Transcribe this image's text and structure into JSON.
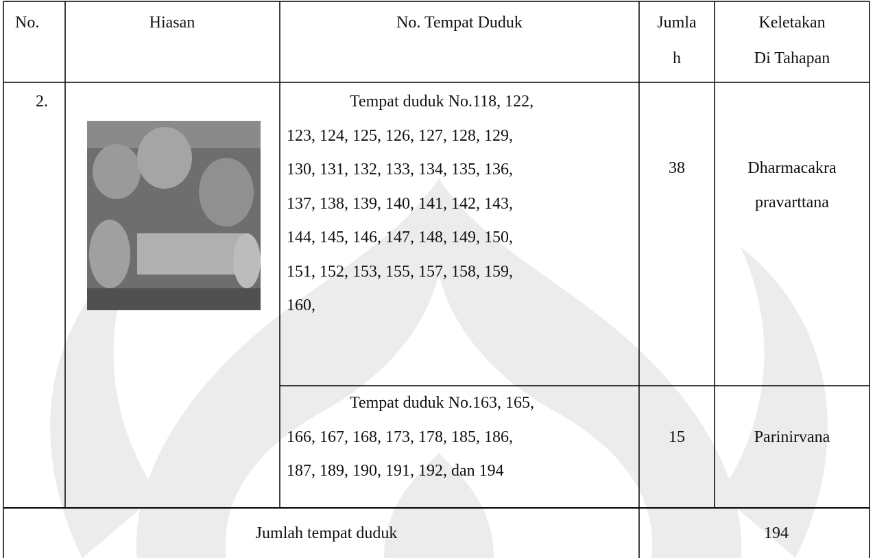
{
  "table": {
    "header": {
      "no": "No.",
      "hiasan": "Hiasan",
      "tempat": "No. Tempat Duduk",
      "jumlah": [
        "Jumla",
        "h"
      ],
      "keletakan": [
        "Keletakan",
        "Di Tahapan"
      ]
    },
    "rows": [
      {
        "no": "2.",
        "entries": [
          {
            "seats": [
              "Tempat duduk No.118, 122,",
              "123, 124, 125, 126, 127, 128, 129,",
              "130, 131, 132, 133, 134, 135, 136,",
              "137, 138, 139, 140, 141, 142, 143,",
              "144, 145, 146, 147, 148, 149, 150,",
              "151, 152, 153, 155, 157, 158, 159,",
              "160,"
            ],
            "count": 38,
            "stage": [
              "Dharmacakra",
              "pravarttana"
            ]
          },
          {
            "seats": [
              "Tempat duduk No.163, 165,",
              "166, 167, 168, 173, 178, 185, 186,",
              "187, 189, 190, 191, 192, dan 194"
            ],
            "count": 15,
            "stage": [
              "Parinirvana"
            ]
          }
        ]
      }
    ],
    "total": {
      "label": "Jumlah tempat duduk",
      "value": 194
    }
  }
}
